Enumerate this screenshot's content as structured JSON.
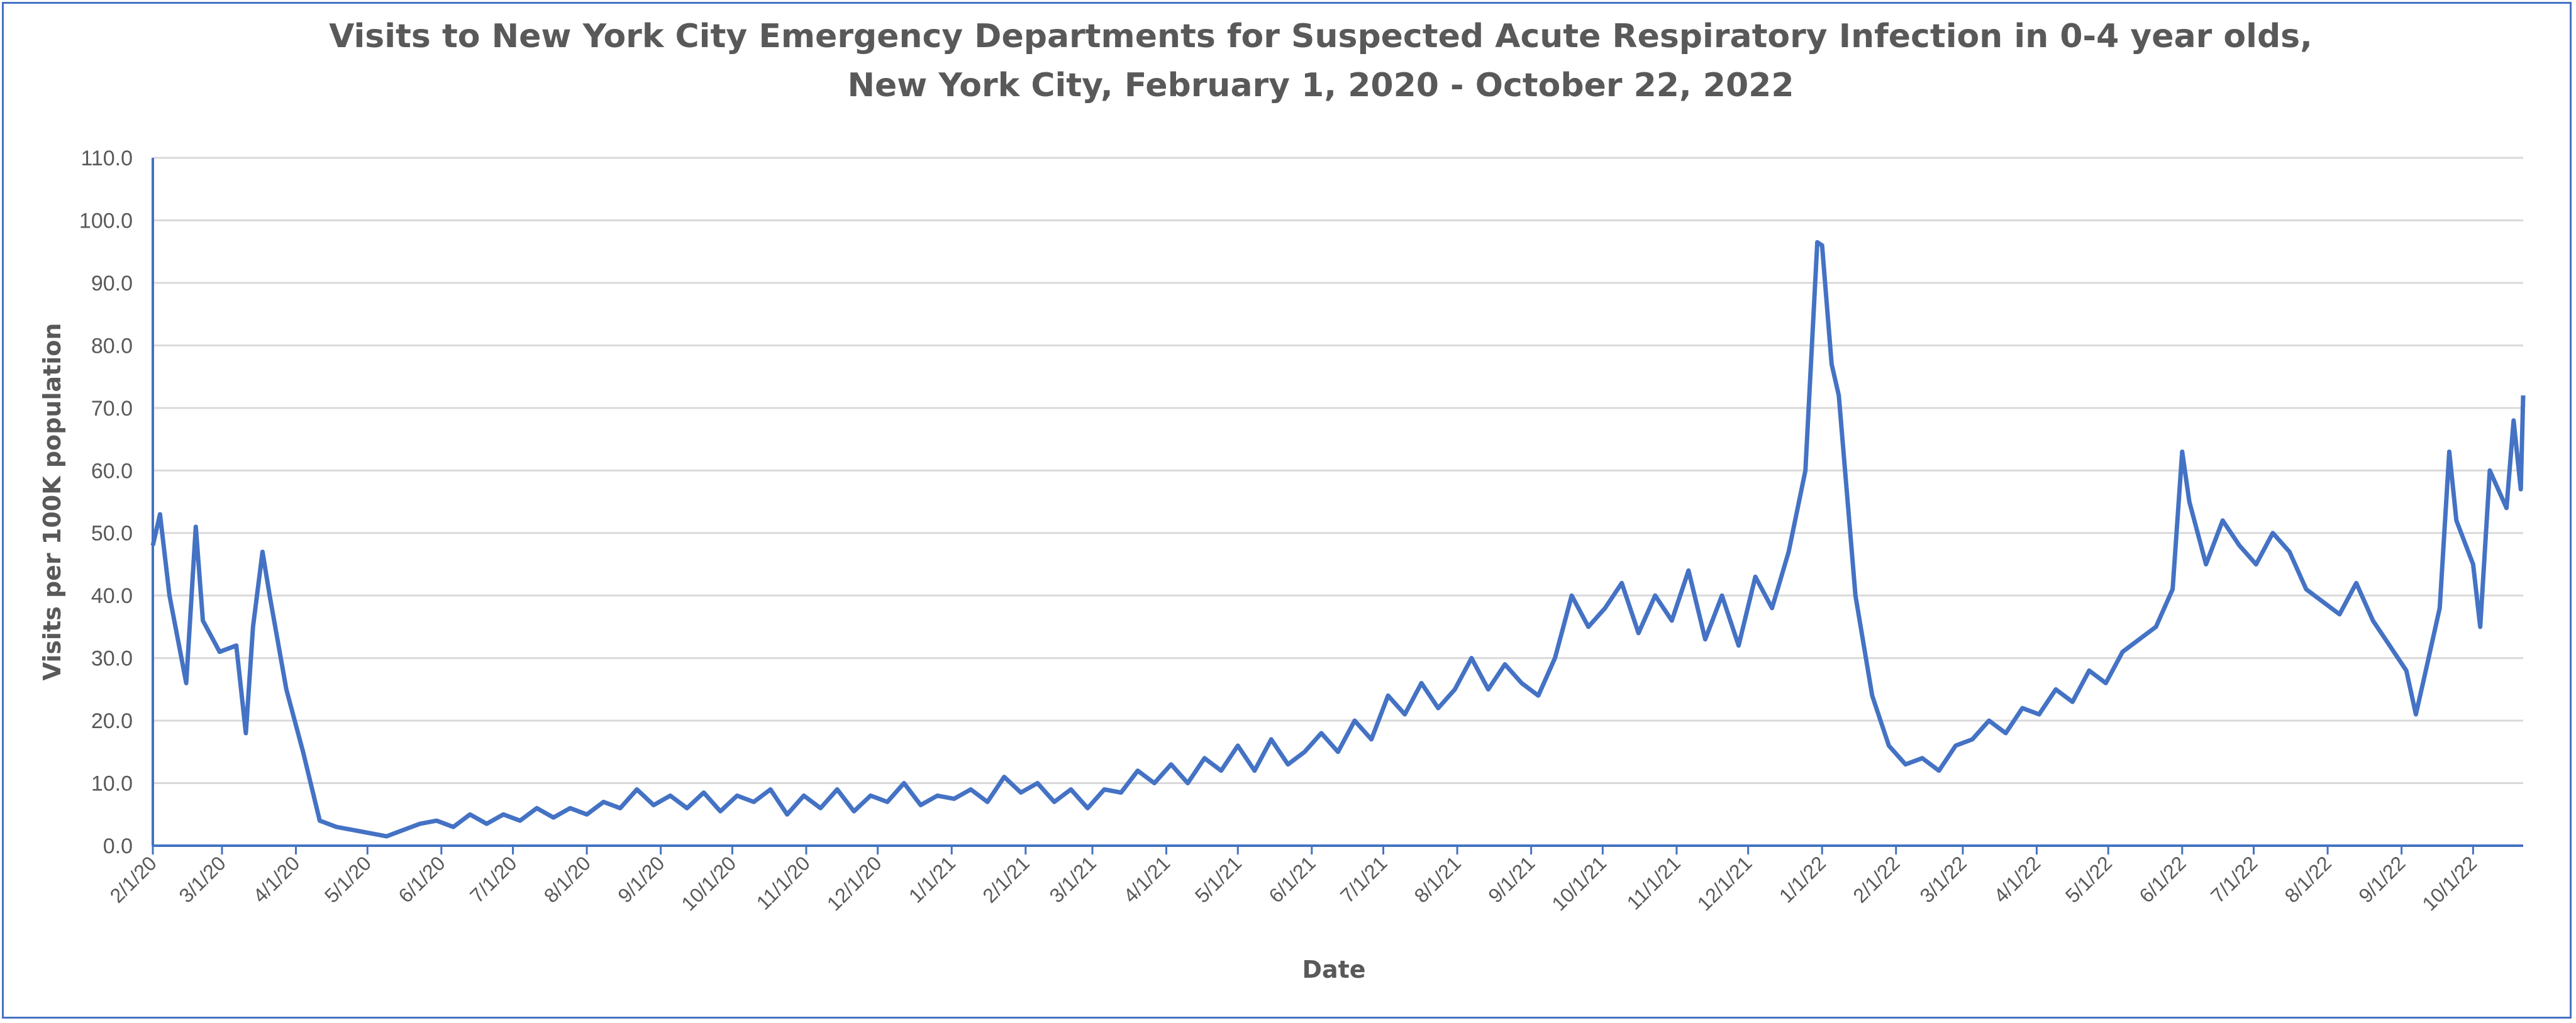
{
  "chart_data": {
    "type": "line",
    "title_line1": "Visits to New York City Emergency Departments for Suspected Acute Respiratory Infection in 0-4 year olds,",
    "title_line2": "New York City, February 1, 2020 - October 22, 2022",
    "xlabel": "Date",
    "ylabel": "Visits per 100K population",
    "ylim": [
      0,
      110
    ],
    "y_ticks": [
      "0.0",
      "10.0",
      "20.0",
      "30.0",
      "40.0",
      "50.0",
      "60.0",
      "70.0",
      "80.0",
      "90.0",
      "100.0",
      "110.0"
    ],
    "x_range": [
      "2020-02-01",
      "2022-10-22"
    ],
    "x_ticks": [
      [
        "2020-02-01",
        "2/1/20"
      ],
      [
        "2020-03-01",
        "3/1/20"
      ],
      [
        "2020-04-01",
        "4/1/20"
      ],
      [
        "2020-05-01",
        "5/1/20"
      ],
      [
        "2020-06-01",
        "6/1/20"
      ],
      [
        "2020-07-01",
        "7/1/20"
      ],
      [
        "2020-08-01",
        "8/1/20"
      ],
      [
        "2020-09-01",
        "9/1/20"
      ],
      [
        "2020-10-01",
        "10/1/20"
      ],
      [
        "2020-11-01",
        "11/1/20"
      ],
      [
        "2020-12-01",
        "12/1/20"
      ],
      [
        "2021-01-01",
        "1/1/21"
      ],
      [
        "2021-02-01",
        "2/1/21"
      ],
      [
        "2021-03-01",
        "3/1/21"
      ],
      [
        "2021-04-01",
        "4/1/21"
      ],
      [
        "2021-05-01",
        "5/1/21"
      ],
      [
        "2021-06-01",
        "6/1/21"
      ],
      [
        "2021-07-01",
        "7/1/21"
      ],
      [
        "2021-08-01",
        "8/1/21"
      ],
      [
        "2021-09-01",
        "9/1/21"
      ],
      [
        "2021-10-01",
        "10/1/21"
      ],
      [
        "2021-11-01",
        "11/1/21"
      ],
      [
        "2021-12-01",
        "12/1/21"
      ],
      [
        "2022-01-01",
        "1/1/22"
      ],
      [
        "2022-02-01",
        "2/1/22"
      ],
      [
        "2022-03-01",
        "3/1/22"
      ],
      [
        "2022-04-01",
        "4/1/22"
      ],
      [
        "2022-05-01",
        "5/1/22"
      ],
      [
        "2022-06-01",
        "6/1/22"
      ],
      [
        "2022-07-01",
        "7/1/22"
      ],
      [
        "2022-08-01",
        "8/1/22"
      ],
      [
        "2022-09-01",
        "9/1/22"
      ],
      [
        "2022-10-01",
        "10/1/22"
      ]
    ],
    "grid": true,
    "legend": "none",
    "line_color": "#4472c4",
    "series": [
      {
        "points": [
          [
            "2020-02-01",
            48
          ],
          [
            "2020-02-04",
            53
          ],
          [
            "2020-02-08",
            40
          ],
          [
            "2020-02-15",
            26
          ],
          [
            "2020-02-19",
            51
          ],
          [
            "2020-02-22",
            36
          ],
          [
            "2020-02-29",
            31
          ],
          [
            "2020-03-07",
            32
          ],
          [
            "2020-03-11",
            18
          ],
          [
            "2020-03-14",
            35
          ],
          [
            "2020-03-18",
            47
          ],
          [
            "2020-03-21",
            40
          ],
          [
            "2020-03-28",
            25
          ],
          [
            "2020-04-04",
            15
          ],
          [
            "2020-04-11",
            4
          ],
          [
            "2020-04-18",
            3
          ],
          [
            "2020-04-25",
            2.5
          ],
          [
            "2020-05-02",
            2
          ],
          [
            "2020-05-09",
            1.5
          ],
          [
            "2020-05-16",
            2.5
          ],
          [
            "2020-05-23",
            3.5
          ],
          [
            "2020-05-30",
            4
          ],
          [
            "2020-06-06",
            3
          ],
          [
            "2020-06-13",
            5
          ],
          [
            "2020-06-20",
            3.5
          ],
          [
            "2020-06-27",
            5
          ],
          [
            "2020-07-04",
            4
          ],
          [
            "2020-07-11",
            6
          ],
          [
            "2020-07-18",
            4.5
          ],
          [
            "2020-07-25",
            6
          ],
          [
            "2020-08-01",
            5
          ],
          [
            "2020-08-08",
            7
          ],
          [
            "2020-08-15",
            6
          ],
          [
            "2020-08-22",
            9
          ],
          [
            "2020-08-29",
            6.5
          ],
          [
            "2020-09-05",
            8
          ],
          [
            "2020-09-12",
            6
          ],
          [
            "2020-09-19",
            8.5
          ],
          [
            "2020-09-26",
            5.5
          ],
          [
            "2020-10-03",
            8
          ],
          [
            "2020-10-10",
            7
          ],
          [
            "2020-10-17",
            9
          ],
          [
            "2020-10-24",
            5
          ],
          [
            "2020-10-31",
            8
          ],
          [
            "2020-11-07",
            6
          ],
          [
            "2020-11-14",
            9
          ],
          [
            "2020-11-21",
            5.5
          ],
          [
            "2020-11-28",
            8
          ],
          [
            "2020-12-05",
            7
          ],
          [
            "2020-12-12",
            10
          ],
          [
            "2020-12-19",
            6.5
          ],
          [
            "2020-12-26",
            8
          ],
          [
            "2021-01-02",
            7.5
          ],
          [
            "2021-01-09",
            9
          ],
          [
            "2021-01-16",
            7
          ],
          [
            "2021-01-23",
            11
          ],
          [
            "2021-01-30",
            8.5
          ],
          [
            "2021-02-06",
            10
          ],
          [
            "2021-02-13",
            7
          ],
          [
            "2021-02-20",
            9
          ],
          [
            "2021-02-27",
            6
          ],
          [
            "2021-03-06",
            9
          ],
          [
            "2021-03-13",
            8.5
          ],
          [
            "2021-03-20",
            12
          ],
          [
            "2021-03-27",
            10
          ],
          [
            "2021-04-03",
            13
          ],
          [
            "2021-04-10",
            10
          ],
          [
            "2021-04-17",
            14
          ],
          [
            "2021-04-24",
            12
          ],
          [
            "2021-05-01",
            16
          ],
          [
            "2021-05-08",
            12
          ],
          [
            "2021-05-15",
            17
          ],
          [
            "2021-05-22",
            13
          ],
          [
            "2021-05-29",
            15
          ],
          [
            "2021-06-05",
            18
          ],
          [
            "2021-06-12",
            15
          ],
          [
            "2021-06-19",
            20
          ],
          [
            "2021-06-26",
            17
          ],
          [
            "2021-07-03",
            24
          ],
          [
            "2021-07-10",
            21
          ],
          [
            "2021-07-17",
            26
          ],
          [
            "2021-07-24",
            22
          ],
          [
            "2021-07-31",
            25
          ],
          [
            "2021-08-07",
            30
          ],
          [
            "2021-08-14",
            25
          ],
          [
            "2021-08-21",
            29
          ],
          [
            "2021-08-28",
            26
          ],
          [
            "2021-09-04",
            24
          ],
          [
            "2021-09-11",
            30
          ],
          [
            "2021-09-18",
            40
          ],
          [
            "2021-09-25",
            35
          ],
          [
            "2021-10-02",
            38
          ],
          [
            "2021-10-09",
            42
          ],
          [
            "2021-10-16",
            34
          ],
          [
            "2021-10-23",
            40
          ],
          [
            "2021-10-30",
            36
          ],
          [
            "2021-11-06",
            44
          ],
          [
            "2021-11-13",
            33
          ],
          [
            "2021-11-20",
            40
          ],
          [
            "2021-11-27",
            32
          ],
          [
            "2021-12-04",
            43
          ],
          [
            "2021-12-11",
            38
          ],
          [
            "2021-12-18",
            47
          ],
          [
            "2021-12-25",
            60
          ],
          [
            "2021-12-30",
            96.5
          ],
          [
            "2022-01-01",
            96
          ],
          [
            "2022-01-05",
            77
          ],
          [
            "2022-01-08",
            72
          ],
          [
            "2022-01-15",
            40
          ],
          [
            "2022-01-22",
            24
          ],
          [
            "2022-01-29",
            16
          ],
          [
            "2022-02-05",
            13
          ],
          [
            "2022-02-12",
            14
          ],
          [
            "2022-02-19",
            12
          ],
          [
            "2022-02-26",
            16
          ],
          [
            "2022-03-05",
            17
          ],
          [
            "2022-03-12",
            20
          ],
          [
            "2022-03-19",
            18
          ],
          [
            "2022-03-26",
            22
          ],
          [
            "2022-04-02",
            21
          ],
          [
            "2022-04-09",
            25
          ],
          [
            "2022-04-16",
            23
          ],
          [
            "2022-04-23",
            28
          ],
          [
            "2022-04-30",
            26
          ],
          [
            "2022-05-07",
            31
          ],
          [
            "2022-05-14",
            33
          ],
          [
            "2022-05-21",
            35
          ],
          [
            "2022-05-28",
            41
          ],
          [
            "2022-06-01",
            63
          ],
          [
            "2022-06-04",
            55
          ],
          [
            "2022-06-11",
            45
          ],
          [
            "2022-06-18",
            52
          ],
          [
            "2022-06-25",
            48
          ],
          [
            "2022-07-02",
            45
          ],
          [
            "2022-07-09",
            50
          ],
          [
            "2022-07-16",
            47
          ],
          [
            "2022-07-23",
            41
          ],
          [
            "2022-07-30",
            39
          ],
          [
            "2022-08-06",
            37
          ],
          [
            "2022-08-13",
            42
          ],
          [
            "2022-08-20",
            36
          ],
          [
            "2022-08-27",
            32
          ],
          [
            "2022-09-03",
            28
          ],
          [
            "2022-09-07",
            21
          ],
          [
            "2022-09-10",
            26
          ],
          [
            "2022-09-17",
            38
          ],
          [
            "2022-09-21",
            63
          ],
          [
            "2022-09-24",
            52
          ],
          [
            "2022-10-01",
            45
          ],
          [
            "2022-10-04",
            35
          ],
          [
            "2022-10-08",
            60
          ],
          [
            "2022-10-15",
            54
          ],
          [
            "2022-10-18",
            68
          ],
          [
            "2022-10-21",
            57
          ],
          [
            "2022-10-22",
            72
          ]
        ]
      }
    ]
  }
}
